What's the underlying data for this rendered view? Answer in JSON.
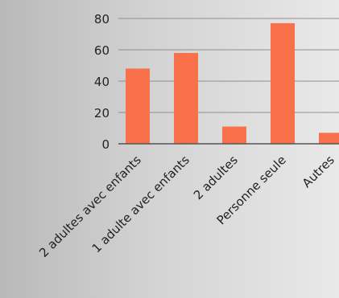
{
  "chart_data": {
    "type": "bar",
    "categories": [
      "2 adultes avec enfants",
      "1 adulte avec enfants",
      "2 adultes",
      "Personne seule",
      "Autres"
    ],
    "values": [
      48,
      58,
      11,
      77,
      7
    ],
    "ylim": [
      0,
      80
    ],
    "yticks": [
      0,
      20,
      40,
      60,
      80
    ],
    "grid": true,
    "legend": "none",
    "colors": {
      "bar": "#F9714A",
      "grid": "#8f8f8f",
      "axis": "#555555",
      "text": "#222222"
    }
  }
}
